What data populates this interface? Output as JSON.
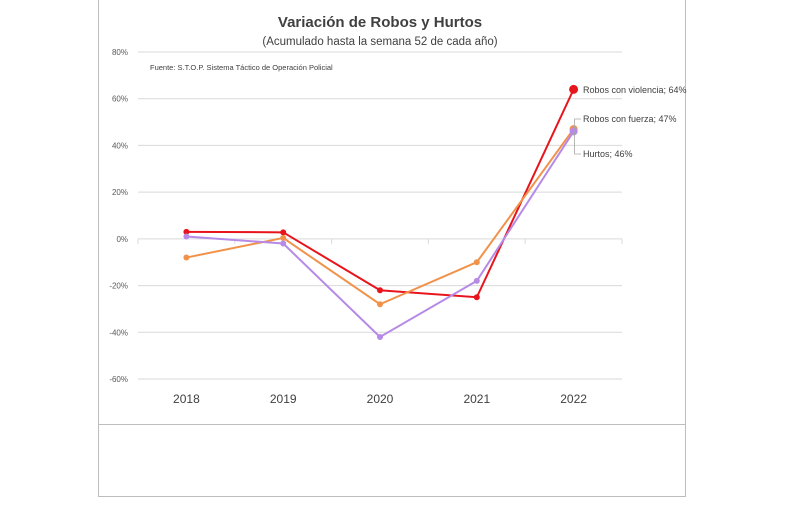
{
  "chart_data": {
    "type": "line",
    "title": "Variación de Robos y Hurtos",
    "subtitle": "(Acumulado hasta la semana 52 de cada año)",
    "source_note": "Fuente: S.T.O.P. Sistema Táctico de Operación Policial",
    "categories": [
      "2018",
      "2019",
      "2020",
      "2021",
      "2022"
    ],
    "ylim": [
      -60,
      80
    ],
    "yticks": [
      -60,
      -40,
      -20,
      0,
      20,
      40,
      60,
      80
    ],
    "ytick_labels": [
      "-60%",
      "-40%",
      "-20%",
      "0%",
      "20%",
      "40%",
      "60%",
      "80%"
    ],
    "grid": true,
    "series": [
      {
        "name": "Robos con violencia",
        "color": "#e8141b",
        "values": [
          3,
          2.8,
          -22,
          -25,
          64
        ],
        "end_label": "Robos con violencia; 64%"
      },
      {
        "name": "Robos con fuerza",
        "color": "#f0924a",
        "values": [
          -8,
          0.4,
          -28,
          -10,
          47
        ],
        "end_label": "Robos con fuerza; 47%"
      },
      {
        "name": "Hurtos",
        "color": "#b68ae6",
        "values": [
          1,
          -2,
          -42,
          -18,
          46
        ],
        "end_label": "Hurtos; 46%"
      }
    ]
  }
}
